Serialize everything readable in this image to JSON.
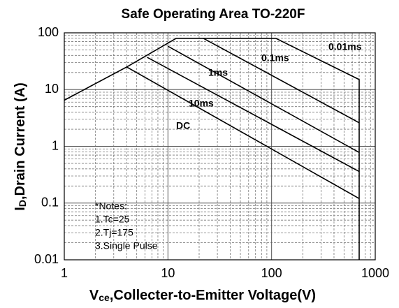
{
  "chart_data": {
    "type": "line",
    "title": "Safe Operating Area TO-220F",
    "x_label": [
      "V",
      "ce",
      ",Collecter-to-Emitter Voltage(V)"
    ],
    "y_label": [
      "I",
      "D",
      ",Drain Current (A)"
    ],
    "log_x": true,
    "log_y": true,
    "grid": true,
    "xlim": [
      1,
      1000
    ],
    "ylim": [
      0.01,
      100
    ],
    "xticks": [
      1,
      10,
      100,
      1000
    ],
    "yticks": [
      0.01,
      0.1,
      1,
      10,
      100
    ],
    "series": [
      {
        "name": "0.01ms",
        "color": "#000000",
        "x": [
          4,
          12,
          110,
          700,
          700
        ],
        "values": [
          25,
          80,
          80,
          15,
          0.01
        ]
      },
      {
        "name": "0.1ms",
        "color": "#000000",
        "x": [
          22,
          700
        ],
        "values": [
          80,
          2.6
        ]
      },
      {
        "name": "1ms",
        "color": "#000000",
        "x": [
          10,
          700
        ],
        "values": [
          58,
          0.78
        ]
      },
      {
        "name": "10ms",
        "color": "#000000",
        "x": [
          6.3,
          700
        ],
        "values": [
          37,
          0.36
        ]
      },
      {
        "name": "DC",
        "color": "#000000",
        "x": [
          1,
          4,
          700
        ],
        "values": [
          6.5,
          25,
          0.12
        ]
      }
    ],
    "notes": [
      "*Notes:",
      "1.Tc=25",
      "2.Tj=175",
      "3.Single Pulse"
    ]
  }
}
